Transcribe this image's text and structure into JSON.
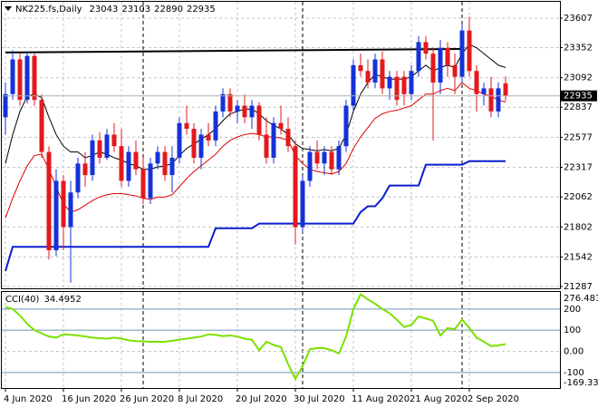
{
  "chart_data": {
    "type": "candlestick",
    "title": "NK225.fs,Daily",
    "categories": [
      "4 Jun 2020",
      null,
      null,
      null,
      null,
      null,
      null,
      null,
      "16 Jun 2020",
      null,
      null,
      null,
      null,
      null,
      null,
      null,
      "26 Jun 2020",
      null,
      null,
      null,
      null,
      null,
      null,
      null,
      "8 Jul 2020",
      null,
      null,
      null,
      null,
      null,
      null,
      null,
      "20 Jul 2020",
      null,
      null,
      null,
      null,
      null,
      null,
      null,
      "30 Jul 2020",
      null,
      null,
      null,
      null,
      null,
      null,
      null,
      "11 Aug 2020",
      null,
      null,
      null,
      null,
      null,
      null,
      null,
      "21 Aug 2020",
      null,
      null,
      null,
      null,
      null,
      null,
      null,
      "2 Sep 2020",
      null,
      null,
      null,
      null,
      null
    ],
    "open": [
      22750,
      22950,
      23250,
      22900,
      23280,
      22900,
      22450,
      21600,
      22200,
      21800,
      22100,
      22350,
      22250,
      22550,
      22400,
      22600,
      22500,
      22200,
      22450,
      22300,
      22050,
      22350,
      22450,
      22250,
      22400,
      22700,
      22650,
      22400,
      22600,
      22550,
      22800,
      22950,
      22800,
      22850,
      22750,
      22850,
      22600,
      22400,
      22700,
      22650,
      22500,
      21800,
      22200,
      22450,
      22350,
      22450,
      22300,
      22500,
      22850,
      23200,
      23150,
      23050,
      23250,
      23000,
      23100,
      23100,
      22950,
      23150,
      23400,
      23300,
      23050,
      23350,
      23200,
      23100,
      23500,
      23150,
      22950,
      23000,
      22800,
      23043
    ],
    "high": [
      23050,
      23330,
      23300,
      23320,
      23300,
      22950,
      22500,
      22300,
      22250,
      22200,
      22400,
      22450,
      22600,
      22620,
      22650,
      22700,
      22650,
      22500,
      22550,
      22400,
      22400,
      22500,
      22500,
      22500,
      22750,
      22850,
      22700,
      22650,
      22700,
      22850,
      23000,
      23000,
      22900,
      22950,
      22900,
      22880,
      22750,
      22750,
      22850,
      22750,
      22550,
      22250,
      22500,
      22550,
      22500,
      22500,
      22550,
      22900,
      23250,
      23300,
      23250,
      23300,
      23320,
      23150,
      23150,
      23150,
      23200,
      23450,
      23450,
      23350,
      23420,
      23400,
      23300,
      23550,
      23620,
      23200,
      23050,
      23100,
      23050,
      23103
    ],
    "low": [
      22600,
      22900,
      22850,
      22870,
      22850,
      22400,
      21520,
      21550,
      21600,
      21320,
      22050,
      22150,
      22200,
      22350,
      22380,
      22450,
      22150,
      22150,
      22250,
      22000,
      22000,
      22300,
      22200,
      22100,
      22350,
      22600,
      22350,
      22300,
      22500,
      22500,
      22750,
      22750,
      22700,
      22700,
      22650,
      22550,
      22350,
      22350,
      22600,
      22450,
      21650,
      21750,
      22150,
      22300,
      22250,
      22250,
      22250,
      22450,
      22800,
      23100,
      23000,
      23000,
      22950,
      22900,
      22850,
      22850,
      22900,
      23100,
      23250,
      22550,
      22950,
      23100,
      22950,
      23050,
      23100,
      22800,
      22850,
      22750,
      22750,
      22890
    ],
    "close": [
      22950,
      23250,
      22900,
      23280,
      22900,
      22450,
      21600,
      22200,
      21800,
      22100,
      22350,
      22250,
      22550,
      22400,
      22600,
      22500,
      22200,
      22450,
      22300,
      22050,
      22350,
      22450,
      22250,
      22400,
      22700,
      22650,
      22400,
      22600,
      22550,
      22800,
      22950,
      22800,
      22850,
      22750,
      22850,
      22600,
      22400,
      22700,
      22650,
      22500,
      21800,
      22200,
      22450,
      22350,
      22450,
      22300,
      22500,
      22850,
      23200,
      23150,
      23050,
      23250,
      23000,
      23100,
      22900,
      22950,
      23150,
      23400,
      23300,
      23050,
      23350,
      23200,
      23100,
      23500,
      23150,
      22950,
      23000,
      22800,
      23000,
      22935
    ],
    "up_color": "#1432d8",
    "down_color": "#e3191c",
    "overlays": [
      {
        "color": "#000000",
        "width": 1,
        "values": [
          22350,
          22600,
          22800,
          22930,
          22950,
          22920,
          22750,
          22600,
          22500,
          22450,
          22450,
          22400,
          22420,
          22450,
          22430,
          22400,
          22380,
          22350,
          22330,
          22300,
          22300,
          22320,
          22330,
          22350,
          22420,
          22480,
          22520,
          22560,
          22600,
          22650,
          22720,
          22780,
          22800,
          22820,
          22820,
          22780,
          22720,
          22680,
          22650,
          22600,
          22520,
          22480,
          22470,
          22460,
          22470,
          22460,
          22480,
          22600,
          22800,
          22950,
          23050,
          23120,
          23100,
          23080,
          23080,
          23080,
          23100,
          23150,
          23200,
          23150,
          23180,
          23200,
          23180,
          23300,
          23380,
          23350,
          23300,
          23250,
          23200,
          23180
        ]
      },
      {
        "color": "#e00000",
        "width": 1,
        "values": [
          21880,
          22050,
          22200,
          22330,
          22420,
          22430,
          22300,
          22150,
          22000,
          21930,
          21950,
          21990,
          22030,
          22060,
          22080,
          22090,
          22090,
          22080,
          22070,
          22050,
          22040,
          22060,
          22060,
          22080,
          22150,
          22220,
          22280,
          22330,
          22380,
          22430,
          22500,
          22550,
          22580,
          22600,
          22610,
          22600,
          22580,
          22580,
          22570,
          22550,
          22420,
          22350,
          22300,
          22280,
          22270,
          22260,
          22280,
          22350,
          22480,
          22580,
          22660,
          22740,
          22780,
          22800,
          22810,
          22830,
          22850,
          22900,
          22950,
          22950,
          22980,
          23000,
          22980,
          23050,
          23000,
          22980,
          22950,
          22930,
          22900,
          22880
        ]
      },
      {
        "color": "#0a1fcf",
        "width": 2,
        "values": [
          21420,
          21630,
          21630,
          21630,
          21630,
          21630,
          21630,
          21630,
          21630,
          21630,
          21630,
          21630,
          21630,
          21630,
          21630,
          21630,
          21630,
          21630,
          21630,
          21630,
          21630,
          21630,
          21630,
          21630,
          21630,
          21630,
          21630,
          21630,
          21630,
          21790,
          21790,
          21790,
          21790,
          21790,
          21790,
          21830,
          21830,
          21830,
          21830,
          21830,
          21830,
          21830,
          21830,
          21830,
          21830,
          21830,
          21830,
          21830,
          21830,
          21930,
          21980,
          21980,
          22050,
          22160,
          22160,
          22160,
          22160,
          22160,
          22340,
          22340,
          22340,
          22340,
          22340,
          22340,
          22370,
          22370,
          22370,
          22370,
          22370,
          22370
        ]
      }
    ],
    "trendline": {
      "x": [
        0,
        63
      ],
      "values": [
        23310,
        23340
      ],
      "color": "#000000"
    },
    "separators": [
      19,
      41,
      63
    ],
    "ylim": [
      21271,
      23748
    ],
    "yticks": [
      23607,
      23352,
      23092,
      22837,
      22577,
      22317,
      22062,
      21802,
      21542,
      21287
    ],
    "grid": true,
    "cci": {
      "name": "CCI(40)",
      "color": "#7ce000",
      "values": [
        210,
        200,
        170,
        130,
        100,
        85,
        70,
        65,
        80,
        78,
        75,
        70,
        65,
        62,
        60,
        65,
        60,
        52,
        48,
        47,
        45,
        45,
        45,
        50,
        55,
        60,
        65,
        70,
        80,
        78,
        72,
        75,
        70,
        60,
        55,
        5,
        45,
        30,
        20,
        -60,
        -130,
        -70,
        10,
        15,
        15,
        5,
        -10,
        70,
        200,
        270,
        245,
        225,
        200,
        180,
        150,
        115,
        125,
        165,
        155,
        145,
        75,
        110,
        105,
        150,
        110,
        65,
        45,
        25,
        28,
        34.4952
      ],
      "ylim": [
        -169.336,
        276.4817
      ],
      "yticks": [
        276.4817,
        200,
        100,
        {
          "value": 0,
          "label": "0.00"
        },
        -100,
        -169.336
      ]
    }
  }
}
